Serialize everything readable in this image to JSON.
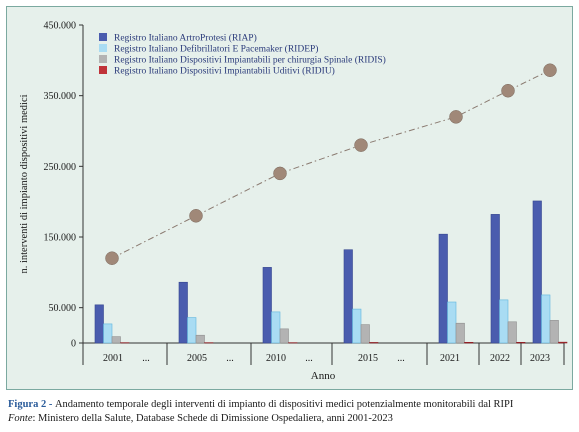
{
  "caption": {
    "figure_label": "Figura 2",
    "figure_text": "Andamento temporale degli interventi di impianto di dispositivi medici potenzialmente monitorabili dal RIPI",
    "source_label": "Fonte",
    "source_text": "Ministero della Salute, Database Schede di Dimissione Ospedaliera, anni 2001-2023"
  },
  "colors": {
    "frame_bg": "#e6f0eb",
    "frame_border": "#7ba9a0",
    "riap": "#4a5cae",
    "ridep": "#a9dcf3",
    "ridis": "#b3b3b3",
    "ridiu": "#c03339",
    "line": "#8a7a70",
    "marker": "#a08878"
  },
  "chart_data": {
    "type": "bar",
    "ylabel": "n. interventi di impianto dispositivi  medici",
    "xlabel": "Anno",
    "ylim": [
      0,
      450000
    ],
    "yticks": [
      0,
      50000,
      150000,
      250000,
      350000,
      450000
    ],
    "ytick_labels": [
      "0",
      "50.000",
      "150.000",
      "250.000",
      "350.000",
      "450.000"
    ],
    "categories": [
      "2001",
      "2005",
      "2010",
      "2015",
      "2021",
      "2022",
      "2023"
    ],
    "ellipsis": "...",
    "legend_position": "top-left",
    "series": [
      {
        "name": "Registro Italiano ArtroProtesi (RIAP)",
        "values": [
          54000,
          86000,
          107000,
          132000,
          154000,
          182000,
          201000
        ]
      },
      {
        "name": "Registro Italiano Defibrillatori E Pacemaker (RIDEP)",
        "values": [
          27000,
          36000,
          44000,
          48000,
          58000,
          61000,
          68000
        ]
      },
      {
        "name": "Registro Italiano Dispositivi Impiantabili per chirurgia Spinale (RIDIS)",
        "values": [
          9000,
          11000,
          20000,
          26000,
          28000,
          30000,
          32000
        ]
      },
      {
        "name": "Registro Italiano Dispositivi Impiantabili Uditivi (RIDIU)",
        "values": [
          500,
          500,
          500,
          800,
          1000,
          1000,
          1200
        ]
      }
    ],
    "total_line_values": [
      120000,
      180000,
      240000,
      280000,
      320000,
      357000,
      386000
    ]
  }
}
